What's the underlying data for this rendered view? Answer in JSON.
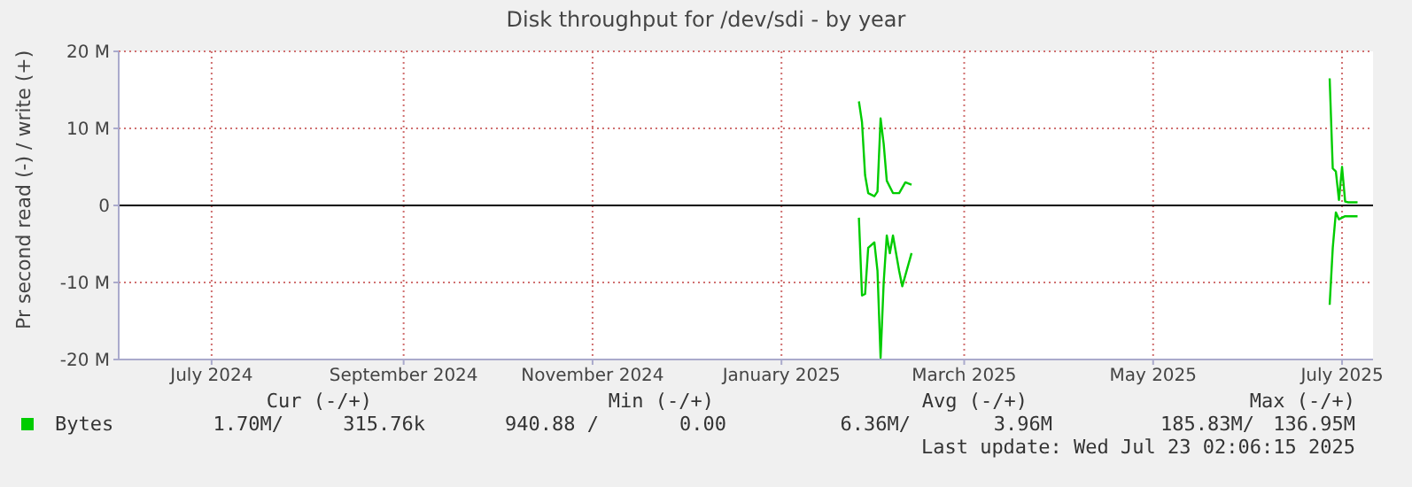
{
  "chart_data": {
    "type": "line",
    "title": "Disk throughput for /dev/sdi - by year",
    "ylabel": "Pr second read (-) / write (+)",
    "xlim": [
      "2024-06-01",
      "2025-07-11"
    ],
    "xticks": [
      {
        "value": "2024-07-01",
        "label": "July 2024"
      },
      {
        "value": "2024-09-01",
        "label": "September 2024"
      },
      {
        "value": "2024-11-01",
        "label": "November 2024"
      },
      {
        "value": "2025-01-01",
        "label": "January 2025"
      },
      {
        "value": "2025-03-01",
        "label": "March 2025"
      },
      {
        "value": "2025-05-01",
        "label": "May 2025"
      },
      {
        "value": "2025-07-01",
        "label": "July 2025"
      }
    ],
    "ylim": [
      -20,
      20
    ],
    "yticks": [
      {
        "value": -20,
        "label": "-20 M"
      },
      {
        "value": -10,
        "label": "-10 M"
      },
      {
        "value": 0,
        "label": "0"
      },
      {
        "value": 10,
        "label": "10 M"
      },
      {
        "value": 20,
        "label": "20 M"
      }
    ],
    "grid": true,
    "legend": "bottom left",
    "marker": "none",
    "line_style": "solid",
    "ref_lines": [
      {
        "axis": "y",
        "value": 0,
        "color": "#000000"
      }
    ],
    "series": [
      {
        "name": "Bytes",
        "color": "#00cc00",
        "x": [
          "2025-01-26",
          "2025-01-27",
          "2025-01-28",
          "2025-01-29",
          "2025-01-31",
          "2025-02-01",
          "2025-02-02",
          "2025-02-03",
          "2025-02-04",
          "2025-02-06",
          "2025-02-08",
          "2025-02-10",
          "2025-02-12",
          "2025-04-01",
          "2025-06-27",
          "2025-06-28",
          "2025-06-29",
          "2025-06-30",
          "2025-07-01",
          "2025-07-02",
          "2025-07-03",
          "2025-07-06"
        ],
        "values": [
          13.5,
          10.8,
          3.9,
          1.6,
          1.2,
          1.8,
          11.3,
          8,
          3.2,
          1.6,
          1.6,
          3,
          2.7,
          null,
          16.5,
          4.8,
          4.4,
          0.7,
          5,
          0.5,
          0.4,
          0.4
        ]
      },
      {
        "color": "#00cc00",
        "x": [
          "2025-01-26",
          "2025-01-27",
          "2025-01-28",
          "2025-01-29",
          "2025-01-31",
          "2025-02-01",
          "2025-02-02",
          "2025-02-03",
          "2025-02-04",
          "2025-02-05",
          "2025-02-06",
          "2025-02-08",
          "2025-02-09",
          "2025-02-12",
          "2025-04-01",
          "2025-06-27",
          "2025-06-28",
          "2025-06-29",
          "2025-06-30",
          "2025-07-02",
          "2025-07-06"
        ],
        "values": [
          -1.6,
          -11.7,
          -11.5,
          -5.5,
          -4.8,
          -8.5,
          -19.8,
          -10,
          -3.9,
          -6.2,
          -3.9,
          -8.5,
          -10.5,
          -6.2,
          null,
          -12.9,
          -5.5,
          -0.9,
          -1.8,
          -1.4,
          -1.4
        ]
      }
    ],
    "annotations": [
      "Cur (-/+)",
      "Min (-/+)",
      "Avg (-/+)",
      "Max (-/+)",
      "1.70M/",
      "315.76k",
      "940.88 /",
      "0.00",
      "6.36M/",
      "3.96M",
      "185.83M/",
      "136.95M",
      "Last update: Wed Jul 23 02:06:15 2025"
    ]
  }
}
